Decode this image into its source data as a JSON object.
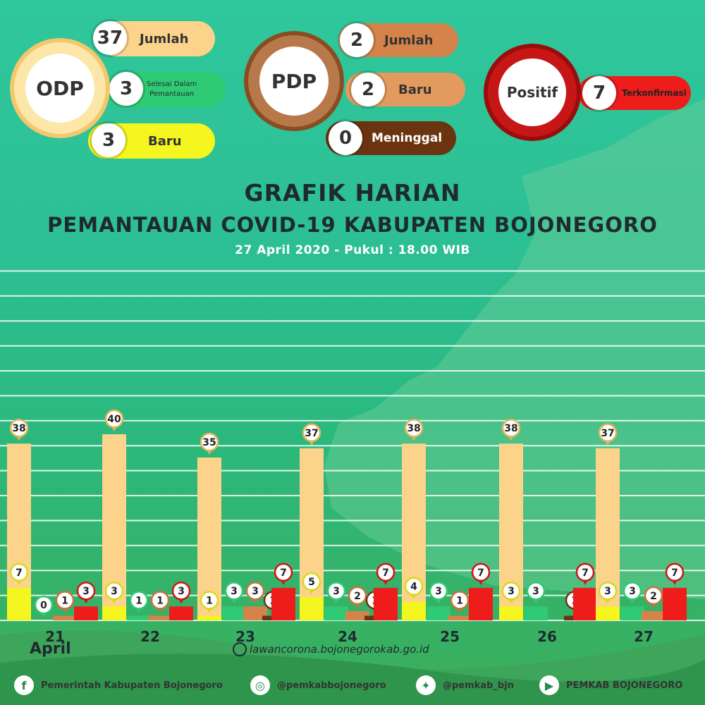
{
  "odp": {
    "label": "ODP",
    "jumlah_value": "37",
    "jumlah_label": "Jumlah",
    "selesai_value": "3",
    "selesai_label_1": "Selesai Dalam",
    "selesai_label_2": "Pemantauan",
    "baru_value": "3",
    "baru_label": "Baru"
  },
  "pdp": {
    "label": "PDP",
    "jumlah_value": "2",
    "jumlah_label": "Jumlah",
    "baru_value": "2",
    "baru_label": "Baru",
    "meninggal_value": "0",
    "meninggal_label": "Meninggal"
  },
  "positif": {
    "label": "Positif",
    "value": "7",
    "value_label": "Terkonfirmasi"
  },
  "titles": {
    "line1": "GRAFIK HARIAN",
    "line2": "PEMANTAUAN COVID-19 KABUPATEN BOJONEGORO",
    "line3": "27 April 2020 - Pukul : 18.00 WIB"
  },
  "month_label": "April",
  "website": "lawancorona.bojonegorokab.go.id",
  "footer": {
    "facebook": "Pemerintah Kabupaten Bojonegoro",
    "instagram": "@pemkabbojonegoro",
    "twitter": "@pemkab_bjn",
    "youtube": "PEMKAB BOJONEGORO"
  },
  "colors": {
    "odp_jumlah": "#fcd38a",
    "odp_baru": "#f5f520",
    "odp_selesai": "#2fca74",
    "pdp_baru": "#d4834a",
    "pdp_meninggal": "#6b3411",
    "positif": "#ef1c1c"
  },
  "chart_data": {
    "type": "bar",
    "categories": [
      "21",
      "22",
      "23",
      "24",
      "25",
      "26",
      "27"
    ],
    "series": [
      {
        "name": "ODP Jumlah",
        "values": [
          38,
          40,
          35,
          37,
          38,
          38,
          37
        ]
      },
      {
        "name": "ODP Baru",
        "values": [
          7,
          3,
          1,
          5,
          4,
          3,
          3
        ]
      },
      {
        "name": "Selesai Dalam Pemantauan",
        "values": [
          0,
          1,
          3,
          3,
          3,
          3,
          3
        ]
      },
      {
        "name": "PDP Baru",
        "values": [
          1,
          1,
          3,
          2,
          1,
          null,
          2
        ]
      },
      {
        "name": "Meninggal",
        "values": [
          null,
          null,
          1,
          1,
          null,
          1,
          null
        ]
      },
      {
        "name": "Positif",
        "values": [
          3,
          3,
          7,
          7,
          7,
          7,
          7
        ]
      }
    ],
    "ylim": [
      0,
      75
    ]
  }
}
